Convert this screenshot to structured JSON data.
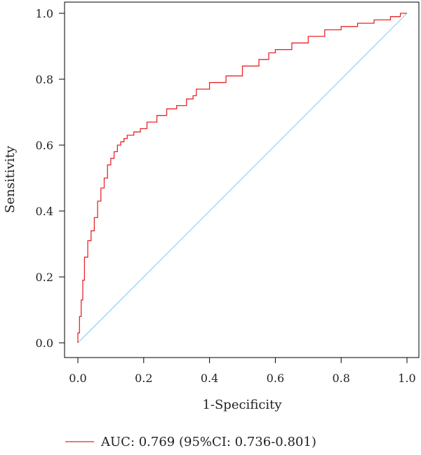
{
  "chart_data": {
    "type": "line",
    "xlabel": "1-Specificity",
    "ylabel": "Sensitivity",
    "xlim": [
      -0.04,
      1.04
    ],
    "ylim": [
      -0.04,
      1.04
    ],
    "x_ticks": [
      "0.0",
      "0.2",
      "0.4",
      "0.6",
      "0.8",
      "1.0"
    ],
    "y_ticks": [
      "0.0",
      "0.2",
      "0.4",
      "0.6",
      "0.8",
      "1.0"
    ],
    "grid": false,
    "legend_position": "bottom-left",
    "series": [
      {
        "name": "AUC: 0.769 (95%CI: 0.736-0.801)",
        "color": "#e8262b",
        "x": [
          0.0,
          0.005,
          0.01,
          0.015,
          0.02,
          0.03,
          0.04,
          0.05,
          0.06,
          0.07,
          0.08,
          0.09,
          0.1,
          0.11,
          0.12,
          0.13,
          0.14,
          0.15,
          0.17,
          0.19,
          0.21,
          0.24,
          0.27,
          0.3,
          0.33,
          0.35,
          0.36,
          0.4,
          0.45,
          0.5,
          0.55,
          0.58,
          0.6,
          0.65,
          0.7,
          0.75,
          0.8,
          0.85,
          0.9,
          0.95,
          0.98,
          1.0
        ],
        "y": [
          0.0,
          0.03,
          0.08,
          0.13,
          0.19,
          0.26,
          0.31,
          0.34,
          0.38,
          0.43,
          0.47,
          0.5,
          0.54,
          0.56,
          0.58,
          0.6,
          0.61,
          0.62,
          0.63,
          0.64,
          0.65,
          0.67,
          0.69,
          0.71,
          0.72,
          0.74,
          0.75,
          0.77,
          0.79,
          0.81,
          0.84,
          0.86,
          0.88,
          0.89,
          0.91,
          0.93,
          0.95,
          0.96,
          0.97,
          0.98,
          0.99,
          1.0
        ]
      }
    ],
    "reference_line": {
      "x": [
        0,
        1
      ],
      "y": [
        0,
        1
      ],
      "color": "#8fd3ea"
    }
  }
}
